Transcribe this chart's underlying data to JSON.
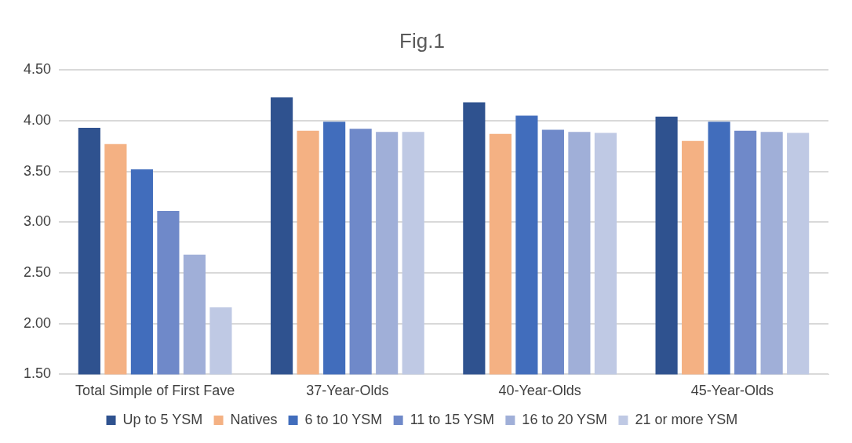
{
  "chart_data": {
    "type": "bar",
    "title": "Fig.1",
    "categories": [
      "Total Simple of First Fave",
      "37-Year-Olds",
      "40-Year-Olds",
      "45-Year-Olds"
    ],
    "series": [
      {
        "name": "Up to 5 YSM",
        "color": "#2f528f",
        "values": [
          3.93,
          4.23,
          4.18,
          4.04
        ]
      },
      {
        "name": "Natives",
        "color": "#f4b183",
        "values": [
          3.77,
          3.9,
          3.87,
          3.8
        ]
      },
      {
        "name": "6 to 10 YSM",
        "color": "#416dbc",
        "values": [
          3.52,
          3.99,
          4.05,
          3.99
        ]
      },
      {
        "name": "11 to 15 YSM",
        "color": "#6f89c9",
        "values": [
          3.11,
          3.92,
          3.91,
          3.9
        ]
      },
      {
        "name": "16 to 20 YSM",
        "color": "#a0afd8",
        "values": [
          2.68,
          3.89,
          3.89,
          3.89
        ]
      },
      {
        "name": "21 or more YSM",
        "color": "#bfc9e4",
        "values": [
          2.16,
          3.89,
          3.88,
          3.88
        ]
      }
    ],
    "ylim": [
      1.5,
      4.5
    ],
    "yticks": [
      {
        "value": 1.5,
        "label": "1.50"
      },
      {
        "value": 2,
        "label": "2.00"
      },
      {
        "value": 2.5,
        "label": "2.50"
      },
      {
        "value": 3,
        "label": "3.00"
      },
      {
        "value": 3.5,
        "label": "3.50"
      },
      {
        "value": 4,
        "label": "4.00"
      },
      {
        "value": 4.5,
        "label": "4.50"
      }
    ],
    "grid": "y",
    "legend": "bottom"
  }
}
